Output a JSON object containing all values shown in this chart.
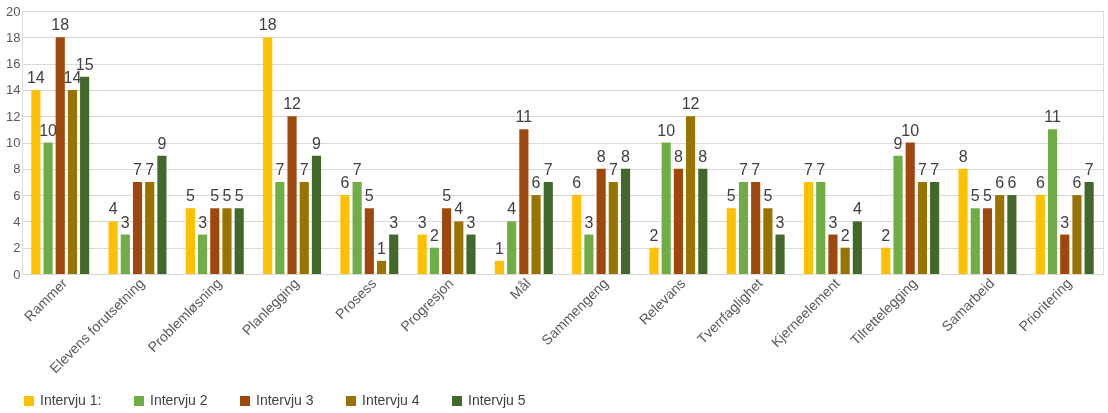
{
  "chart_data": {
    "type": "bar",
    "categories": [
      "Rammer",
      "Elevens forutsetning",
      "Problemløsning",
      "Planlegging",
      "Prosess",
      "Progresjon",
      "Mål",
      "Sammengeng",
      "Relevans",
      "Tverrfaglighet",
      "Kjerneelement",
      "Tilrettelegging",
      "Samarbeid",
      "Prioritering"
    ],
    "series": [
      {
        "name": "Intervju 1:",
        "color": "#ffc000",
        "values": [
          14,
          4,
          5,
          18,
          6,
          3,
          1,
          6,
          2,
          5,
          7,
          2,
          8,
          6
        ]
      },
      {
        "name": "Intervju 2",
        "color": "#70ad47",
        "values": [
          10,
          3,
          3,
          7,
          7,
          2,
          4,
          3,
          10,
          7,
          7,
          9,
          5,
          11
        ]
      },
      {
        "name": "Intervju 3",
        "color": "#9e480e",
        "values": [
          18,
          7,
          5,
          12,
          5,
          5,
          11,
          8,
          8,
          7,
          3,
          10,
          5,
          3
        ]
      },
      {
        "name": "Intervju 4",
        "color": "#997300",
        "values": [
          14,
          7,
          5,
          7,
          1,
          4,
          6,
          7,
          12,
          5,
          2,
          7,
          6,
          6
        ]
      },
      {
        "name": "Intervju 5",
        "color": "#43682b",
        "values": [
          15,
          9,
          5,
          9,
          3,
          3,
          7,
          8,
          8,
          3,
          4,
          7,
          6,
          7
        ]
      }
    ],
    "ylim": [
      0,
      20
    ],
    "yticks": [
      0,
      2,
      4,
      6,
      8,
      10,
      12,
      14,
      16,
      18,
      20
    ],
    "grid": "y",
    "legend": "bottom",
    "data_labels": true
  }
}
